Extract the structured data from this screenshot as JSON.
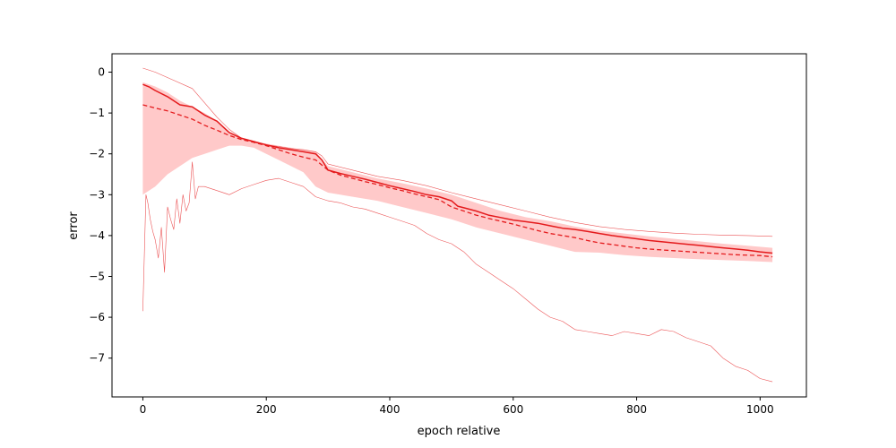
{
  "chart_data": {
    "type": "line",
    "title": "",
    "xlabel": "epoch relative",
    "ylabel": "error",
    "xlim": [
      -50,
      1075
    ],
    "ylim": [
      -7.95,
      0.45
    ],
    "xticks": [
      0,
      200,
      400,
      600,
      800,
      1000
    ],
    "yticks": [
      0,
      -1,
      -2,
      -3,
      -4,
      -5,
      -6,
      -7
    ],
    "grid": false,
    "legend": "none",
    "colors": {
      "line": "#e41a1c",
      "band": "#ffc9c9"
    },
    "series": [
      {
        "role": "median",
        "style": "solid",
        "x": [
          0,
          10,
          20,
          40,
          60,
          80,
          100,
          120,
          140,
          160,
          180,
          200,
          220,
          240,
          260,
          280,
          290,
          300,
          320,
          340,
          360,
          380,
          400,
          420,
          440,
          460,
          480,
          500,
          510,
          520,
          540,
          560,
          580,
          600,
          620,
          640,
          660,
          680,
          700,
          720,
          740,
          760,
          780,
          800,
          820,
          840,
          860,
          880,
          900,
          920,
          940,
          960,
          980,
          1000,
          1020
        ],
        "y": [
          -0.3,
          -0.36,
          -0.45,
          -0.6,
          -0.8,
          -0.85,
          -1.05,
          -1.2,
          -1.48,
          -1.62,
          -1.7,
          -1.78,
          -1.85,
          -1.9,
          -1.95,
          -2.0,
          -2.15,
          -2.4,
          -2.48,
          -2.55,
          -2.62,
          -2.7,
          -2.78,
          -2.85,
          -2.92,
          -3.0,
          -3.05,
          -3.15,
          -3.28,
          -3.32,
          -3.4,
          -3.5,
          -3.56,
          -3.62,
          -3.66,
          -3.7,
          -3.76,
          -3.82,
          -3.85,
          -3.9,
          -3.95,
          -4.0,
          -4.04,
          -4.08,
          -4.12,
          -4.15,
          -4.18,
          -4.21,
          -4.24,
          -4.27,
          -4.3,
          -4.33,
          -4.36,
          -4.4,
          -4.43
        ]
      },
      {
        "role": "mean",
        "style": "dashed",
        "x": [
          0,
          20,
          40,
          60,
          80,
          100,
          120,
          140,
          160,
          180,
          200,
          220,
          240,
          260,
          280,
          300,
          320,
          340,
          360,
          380,
          400,
          420,
          440,
          460,
          480,
          500,
          520,
          540,
          560,
          580,
          600,
          620,
          640,
          660,
          680,
          700,
          720,
          740,
          760,
          780,
          800,
          820,
          840,
          860,
          880,
          900,
          920,
          940,
          960,
          980,
          1000,
          1020
        ],
        "y": [
          -0.8,
          -0.88,
          -0.95,
          -1.05,
          -1.15,
          -1.3,
          -1.42,
          -1.55,
          -1.65,
          -1.72,
          -1.8,
          -1.9,
          -2.0,
          -2.08,
          -2.15,
          -2.4,
          -2.52,
          -2.6,
          -2.68,
          -2.75,
          -2.83,
          -2.9,
          -2.98,
          -3.05,
          -3.12,
          -3.3,
          -3.4,
          -3.5,
          -3.58,
          -3.65,
          -3.72,
          -3.8,
          -3.88,
          -3.95,
          -4.0,
          -4.05,
          -4.12,
          -4.18,
          -4.22,
          -4.26,
          -4.3,
          -4.33,
          -4.35,
          -4.37,
          -4.39,
          -4.41,
          -4.43,
          -4.45,
          -4.47,
          -4.48,
          -4.49,
          -4.52
        ]
      },
      {
        "role": "max",
        "style": "thin",
        "x": [
          0,
          20,
          50,
          80,
          100,
          120,
          140,
          160,
          180,
          200,
          220,
          240,
          260,
          280,
          290,
          300,
          340,
          380,
          420,
          460,
          500,
          540,
          580,
          620,
          660,
          700,
          740,
          780,
          820,
          860,
          900,
          940,
          980,
          1020
        ],
        "y": [
          0.1,
          0.0,
          -0.2,
          -0.4,
          -0.75,
          -1.1,
          -1.4,
          -1.62,
          -1.72,
          -1.78,
          -1.82,
          -1.87,
          -1.9,
          -1.95,
          -2.05,
          -2.25,
          -2.4,
          -2.55,
          -2.65,
          -2.78,
          -2.95,
          -3.1,
          -3.25,
          -3.4,
          -3.55,
          -3.68,
          -3.78,
          -3.85,
          -3.9,
          -3.94,
          -3.97,
          -3.99,
          -4.0,
          -4.02
        ]
      },
      {
        "role": "min",
        "style": "thin",
        "x": [
          0,
          5,
          8,
          12,
          16,
          20,
          25,
          30,
          35,
          40,
          45,
          50,
          55,
          60,
          65,
          70,
          75,
          80,
          85,
          90,
          100,
          120,
          140,
          160,
          180,
          200,
          220,
          240,
          260,
          280,
          300,
          320,
          340,
          360,
          380,
          400,
          420,
          440,
          460,
          480,
          500,
          520,
          540,
          560,
          580,
          600,
          620,
          640,
          660,
          680,
          700,
          720,
          740,
          760,
          780,
          800,
          820,
          840,
          860,
          880,
          900,
          920,
          940,
          960,
          980,
          1000,
          1020
        ],
        "y": [
          -5.85,
          -3.0,
          -3.2,
          -3.6,
          -3.9,
          -4.1,
          -4.55,
          -3.8,
          -4.9,
          -3.3,
          -3.6,
          -3.85,
          -3.1,
          -3.7,
          -3.0,
          -3.4,
          -3.2,
          -2.2,
          -3.1,
          -2.8,
          -2.8,
          -2.9,
          -3.0,
          -2.85,
          -2.75,
          -2.65,
          -2.6,
          -2.7,
          -2.8,
          -3.05,
          -3.15,
          -3.2,
          -3.3,
          -3.35,
          -3.45,
          -3.55,
          -3.65,
          -3.75,
          -3.95,
          -4.1,
          -4.2,
          -4.4,
          -4.7,
          -4.9,
          -5.1,
          -5.3,
          -5.55,
          -5.8,
          -6.0,
          -6.1,
          -6.3,
          -6.35,
          -6.4,
          -6.45,
          -6.35,
          -6.4,
          -6.45,
          -6.3,
          -6.35,
          -6.5,
          -6.6,
          -6.7,
          -7.0,
          -7.2,
          -7.3,
          -7.5,
          -7.58
        ]
      },
      {
        "role": "band",
        "style": "fill",
        "x": [
          0,
          20,
          40,
          60,
          80,
          100,
          120,
          140,
          160,
          180,
          200,
          220,
          240,
          260,
          280,
          300,
          340,
          380,
          420,
          460,
          500,
          540,
          580,
          620,
          660,
          700,
          740,
          780,
          820,
          860,
          900,
          940,
          980,
          1020
        ],
        "upper": [
          -0.25,
          -0.35,
          -0.5,
          -0.7,
          -0.85,
          -1.0,
          -1.2,
          -1.45,
          -1.6,
          -1.7,
          -1.75,
          -1.8,
          -1.85,
          -1.9,
          -1.95,
          -2.3,
          -2.45,
          -2.6,
          -2.72,
          -2.85,
          -3.0,
          -3.2,
          -3.4,
          -3.55,
          -3.65,
          -3.78,
          -3.88,
          -3.95,
          -4.02,
          -4.08,
          -4.14,
          -4.2,
          -4.25,
          -4.3
        ],
        "lower": [
          -3.0,
          -2.8,
          -2.5,
          -2.3,
          -2.1,
          -2.0,
          -1.9,
          -1.8,
          -1.8,
          -1.85,
          -2.0,
          -2.15,
          -2.3,
          -2.45,
          -2.8,
          -2.95,
          -3.05,
          -3.15,
          -3.3,
          -3.45,
          -3.6,
          -3.8,
          -3.95,
          -4.1,
          -4.25,
          -4.4,
          -4.42,
          -4.48,
          -4.52,
          -4.55,
          -4.58,
          -4.6,
          -4.62,
          -4.65
        ]
      }
    ]
  }
}
